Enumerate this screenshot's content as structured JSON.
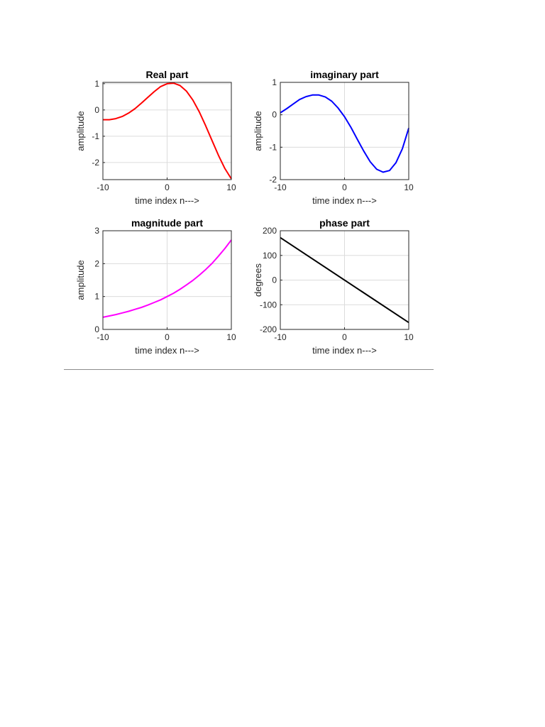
{
  "chart_data": [
    {
      "type": "line",
      "title": "Real part",
      "xlabel": "time index n--->",
      "ylabel": "amplitude",
      "xlim": [
        -10,
        10
      ],
      "ylim": [
        -2.65,
        1.05
      ],
      "xticks": [
        -10,
        0,
        10
      ],
      "yticks": [
        1,
        0,
        -1,
        -2
      ],
      "grid": true,
      "color": "#ff0000",
      "series": [
        {
          "x": [
            -10,
            -9,
            -8,
            -7,
            -6,
            -5,
            -4,
            -3,
            -2,
            -1,
            0,
            1,
            2,
            3,
            4,
            5,
            6,
            7,
            8,
            9,
            10
          ],
          "y": [
            -0.37,
            -0.37,
            -0.33,
            -0.25,
            -0.12,
            0.05,
            0.26,
            0.48,
            0.7,
            0.89,
            1.0,
            1.02,
            0.93,
            0.72,
            0.38,
            -0.07,
            -0.6,
            -1.17,
            -1.73,
            -2.23,
            -2.62
          ]
        }
      ]
    },
    {
      "type": "line",
      "title": "imaginary part",
      "xlabel": "time index n--->",
      "ylabel": "amplitude",
      "xlim": [
        -10,
        10
      ],
      "ylim": [
        -2,
        1
      ],
      "xticks": [
        -10,
        0,
        10
      ],
      "yticks": [
        1,
        0,
        -1,
        -2
      ],
      "grid": true,
      "color": "#0000ff",
      "series": [
        {
          "x": [
            -10,
            -9,
            -8,
            -7,
            -6,
            -5,
            -4,
            -3,
            -2,
            -1,
            0,
            1,
            2,
            3,
            4,
            5,
            6,
            7,
            8,
            9,
            10
          ],
          "y": [
            0.06,
            0.19,
            0.33,
            0.47,
            0.56,
            0.61,
            0.61,
            0.55,
            0.42,
            0.21,
            -0.06,
            -0.39,
            -0.76,
            -1.12,
            -1.45,
            -1.68,
            -1.77,
            -1.72,
            -1.48,
            -1.05,
            -0.41
          ]
        }
      ]
    },
    {
      "type": "line",
      "title": "magnitude part",
      "xlabel": "time index n--->",
      "ylabel": "amplitude",
      "xlim": [
        -10,
        10
      ],
      "ylim": [
        0,
        3
      ],
      "xticks": [
        -10,
        0,
        10
      ],
      "yticks": [
        3,
        2,
        1,
        0
      ],
      "grid": true,
      "color": "#ff00ff",
      "series": [
        {
          "x": [
            -10,
            -9,
            -8,
            -7,
            -6,
            -5,
            -4,
            -3,
            -2,
            -1,
            0,
            1,
            2,
            3,
            4,
            5,
            6,
            7,
            8,
            9,
            10
          ],
          "y": [
            0.37,
            0.41,
            0.45,
            0.5,
            0.55,
            0.61,
            0.67,
            0.74,
            0.82,
            0.9,
            1.0,
            1.1,
            1.22,
            1.35,
            1.49,
            1.65,
            1.82,
            2.01,
            2.23,
            2.46,
            2.72
          ]
        }
      ]
    },
    {
      "type": "line",
      "title": "phase part",
      "xlabel": "time index n--->",
      "ylabel": "degrees",
      "xlim": [
        -10,
        10
      ],
      "ylim": [
        -200,
        200
      ],
      "xticks": [
        -10,
        0,
        10
      ],
      "yticks": [
        200,
        100,
        0,
        -100,
        -200
      ],
      "grid": true,
      "color": "#000000",
      "series": [
        {
          "x": [
            -10,
            10
          ],
          "y": [
            172,
            -172
          ]
        }
      ]
    }
  ]
}
